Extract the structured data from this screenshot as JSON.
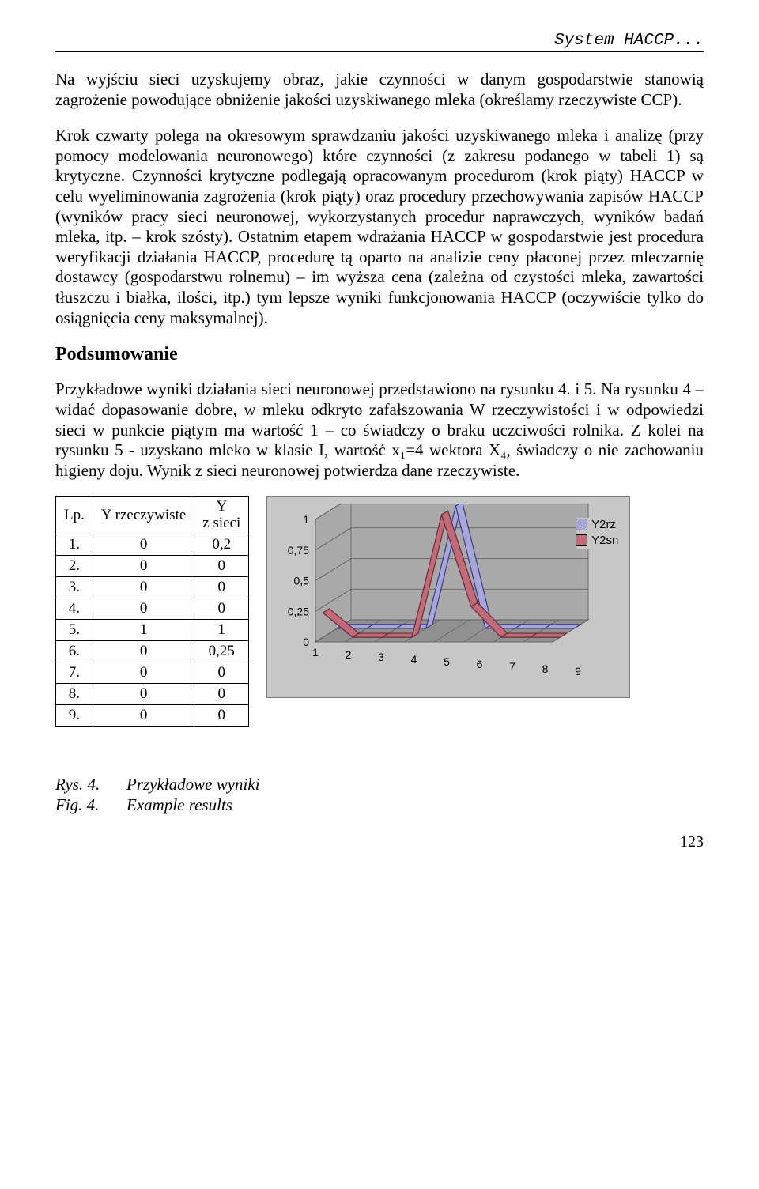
{
  "header": {
    "text": "System HACCP..."
  },
  "paragraphs": {
    "p1": "Na wyjściu sieci uzyskujemy obraz, jakie czynności w danym gospodarstwie stanowią zagrożenie powodujące obniżenie jakości uzyskiwanego mleka (określamy rzeczywiste CCP).",
    "p2": "Krok czwarty polega na okresowym sprawdzaniu jakości uzyskiwanego mleka i analizę (przy pomocy modelowania neuronowego) które czynności (z zakresu podanego w tabeli 1) są krytyczne. Czynności krytyczne podlegają opracowanym procedurom (krok piąty) HACCP w celu wyeliminowania zagrożenia (krok piąty) oraz procedury przechowywania zapisów HACCP (wyników pracy sieci neuronowej, wykorzystanych procedur naprawczych, wyników badań mleka, itp. – krok szósty). Ostatnim etapem wdrażania HACCP w gospodarstwie jest procedura weryfikacji działania HACCP, procedurę tą oparto na analizie ceny płaconej przez mleczarnię dostawcy (gospodarstwu rolnemu) – im wyższa cena (zależna od czystości mleka, zawartości tłuszczu i białka, ilości, itp.) tym lepsze wyniki funkcjonowania HACCP (oczywiście tylko do osiągnięcia ceny maksymalnej).",
    "h2": "Podsumowanie",
    "p3": "Przykładowe wyniki działania sieci neuronowej przedstawiono na rysunku 4. i 5. Na rysunku 4 – widać dopasowanie dobre, w mleku odkryto zafałszowania W rzeczywistości i w odpowiedzi sieci w punkcie piątym ma wartość 1 – co świadczy o braku uczciwości rolnika. Z kolei na rysunku 5 - uzyskano mleko w klasie I, wartość x₁=4 wektora X₄, świadczy o nie zachowaniu higieny doju. Wynik z sieci neuronowej potwierdza dane rzeczywiste."
  },
  "table": {
    "headers": {
      "lp": "Lp.",
      "yr": "Y rzeczywiste",
      "ys_l1": "Y",
      "ys_l2": "z sieci"
    },
    "rows": [
      {
        "lp": "1.",
        "yr": "0",
        "ys": "0,2"
      },
      {
        "lp": "2.",
        "yr": "0",
        "ys": "0"
      },
      {
        "lp": "3.",
        "yr": "0",
        "ys": "0"
      },
      {
        "lp": "4.",
        "yr": "0",
        "ys": "0"
      },
      {
        "lp": "5.",
        "yr": "1",
        "ys": "1"
      },
      {
        "lp": "6.",
        "yr": "0",
        "ys": "0,25"
      },
      {
        "lp": "7.",
        "yr": "0",
        "ys": "0"
      },
      {
        "lp": "8.",
        "yr": "0",
        "ys": "0"
      },
      {
        "lp": "9.",
        "yr": "0",
        "ys": "0"
      }
    ]
  },
  "chart": {
    "type": "3d-line",
    "categories": [
      "1",
      "2",
      "3",
      "4",
      "5",
      "6",
      "7",
      "8",
      "9"
    ],
    "series": [
      {
        "name": "Y2rz",
        "color": "#a7a7d8",
        "stroke": "#3a3a8a",
        "values": [
          0,
          0,
          0,
          0,
          1,
          0,
          0,
          0,
          0
        ]
      },
      {
        "name": "Y2sn",
        "color": "#c06a7a",
        "stroke": "#6b2a38",
        "values": [
          0.2,
          0,
          0,
          0,
          1,
          0.25,
          0,
          0,
          0
        ]
      }
    ],
    "y_ticks": [
      "0",
      "0,25",
      "0,5",
      "0,75",
      "1"
    ],
    "ylim": [
      0,
      1
    ],
    "background_color": "#c7c7c7",
    "grid_wall_color": "#a9a9a9",
    "floor_color": "#909090",
    "border_color": "#7a7a7a",
    "axis_font_family": "Arial",
    "axis_fontsize": 14
  },
  "caption": {
    "rys_lbl": "Rys. 4.",
    "rys_txt": "Przykładowe wyniki",
    "fig_lbl": "Fig. 4.",
    "fig_txt": "Example results"
  },
  "page_number": "123"
}
